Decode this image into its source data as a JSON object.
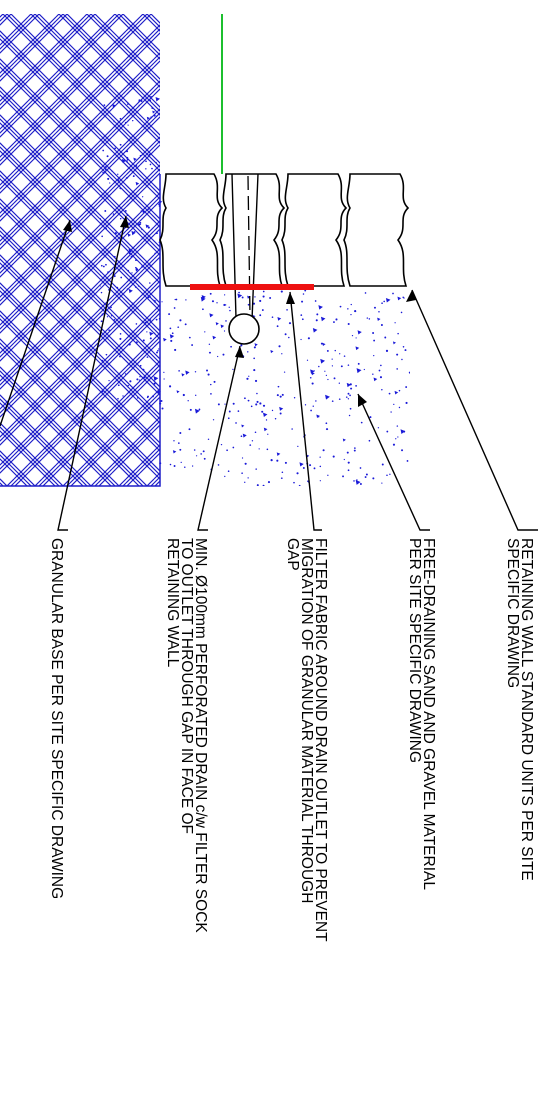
{
  "colors": {
    "hatch": "#1e1ec8",
    "aggregate": "#1a1ad8",
    "fabric": "#ee1111",
    "ground_line": "#00cc00",
    "linework": "#000000",
    "background": "#ffffff"
  },
  "labels": {
    "retaining_wall": [
      "RETAINING WALL STANDARD UNITS PER SITE",
      "SPECIFIC DRAWING"
    ],
    "free_draining": [
      "FREE-DRAINING SAND AND GRAVEL MATERIAL",
      "PER SITE SPECIFIC DRAWING"
    ],
    "filter_fabric": [
      "FILTER FABRIC AROUND DRAIN OUTLET TO PREVENT",
      "MIGRATION OF GRANULAR MATERIAL THROUGH",
      "GAP"
    ],
    "perforated_drain": [
      "MIN. Ø100mm PERFORATED DRAIN c/w FILTER SOCK",
      "TO OUTLET THROUGH GAP IN FACE OF",
      "RETAINING WALL"
    ],
    "granular_base": [
      "GRANULAR BASE PER SITE SPECIFIC DRAWING"
    ]
  }
}
